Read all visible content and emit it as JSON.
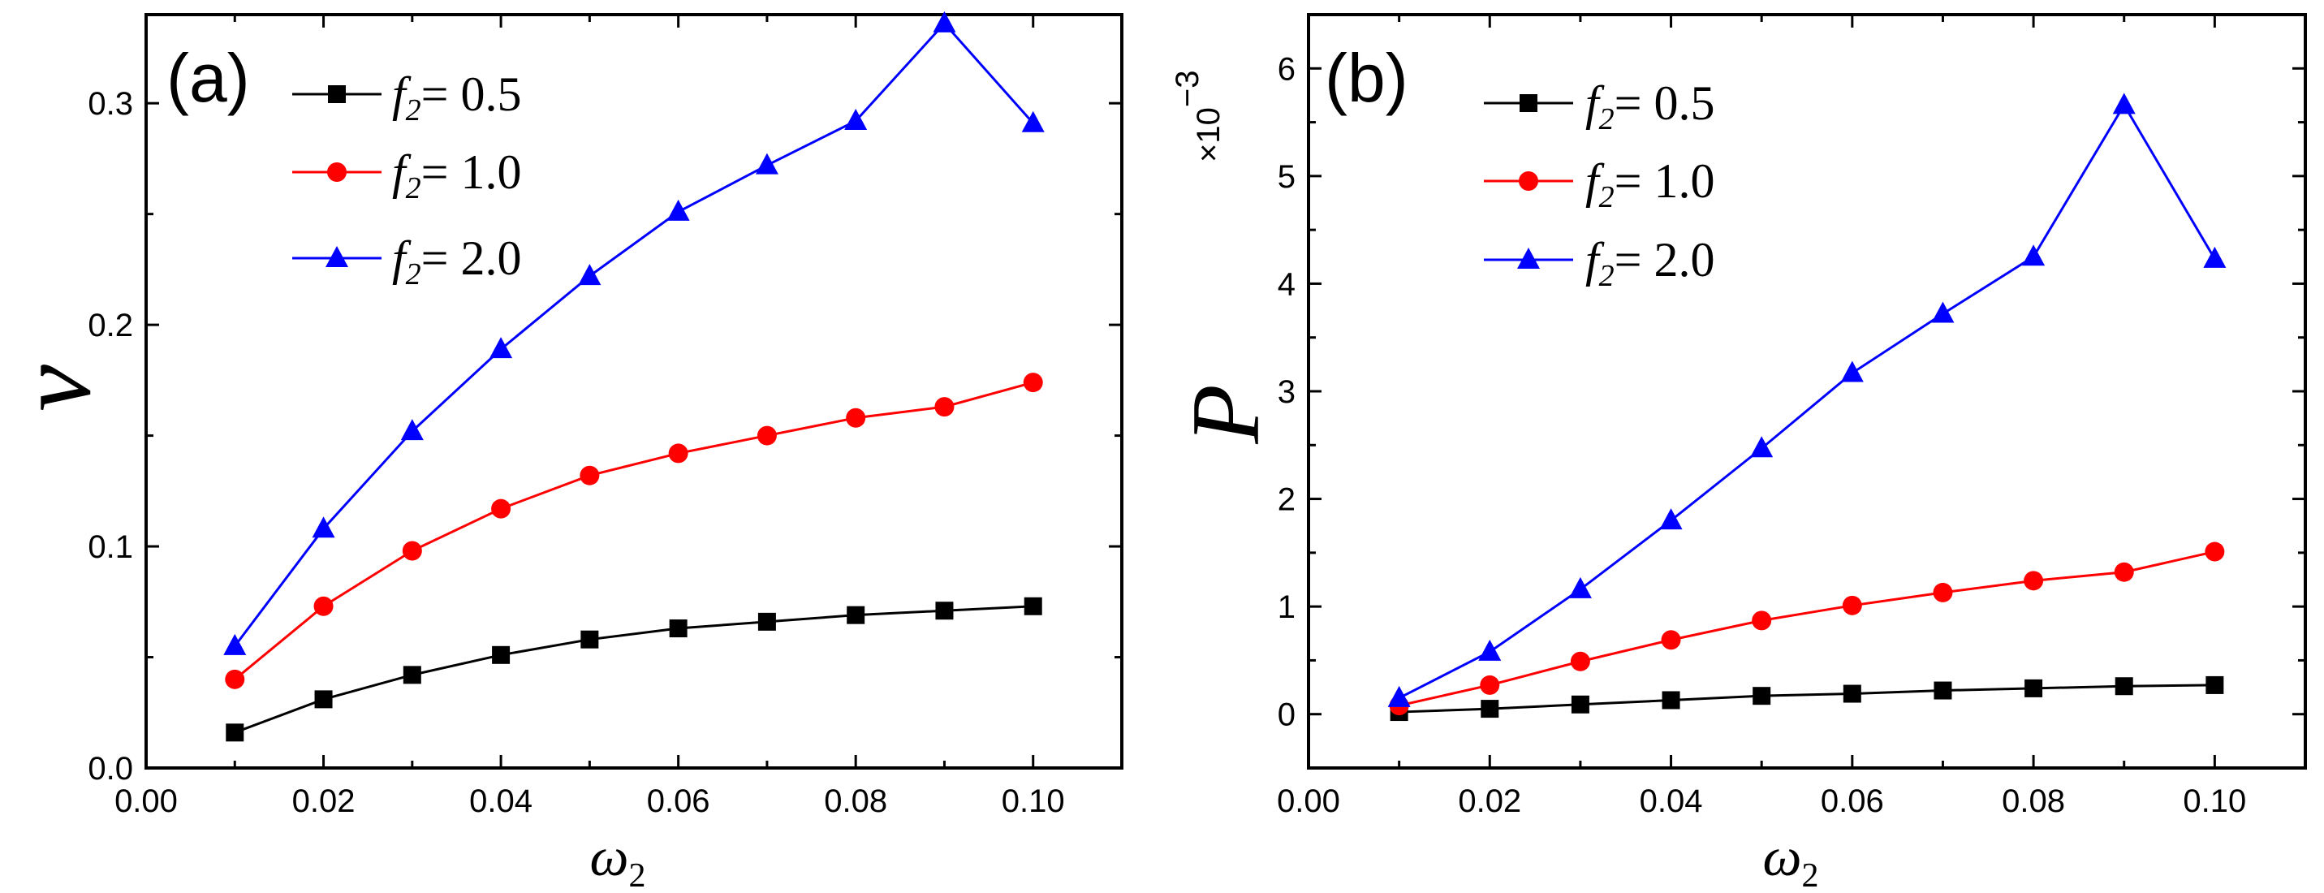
{
  "chart_data": [
    {
      "type": "line",
      "panel_label": "(a)",
      "xlabel": "ω",
      "xlabel_sub": "2",
      "ylabel": "v",
      "xlim": [
        0.0,
        0.11
      ],
      "ylim": [
        0.0,
        0.34
      ],
      "xticks": [
        "0.00",
        "0.02",
        "0.04",
        "0.06",
        "0.08",
        "0.10"
      ],
      "yticks": [
        "0.0",
        "0.1",
        "0.2",
        "0.3"
      ],
      "grid": false,
      "legend_position": "top-left",
      "x": [
        0.01,
        0.02,
        0.03,
        0.04,
        0.05,
        0.06,
        0.07,
        0.08,
        0.09,
        0.1
      ],
      "series": [
        {
          "var": "f",
          "sub": "2",
          "rest": "= 0.5",
          "marker": "square",
          "color": "#000000",
          "values": [
            0.016,
            0.031,
            0.042,
            0.051,
            0.058,
            0.063,
            0.066,
            0.069,
            0.071,
            0.073
          ]
        },
        {
          "var": "f",
          "sub": "2",
          "rest": "= 1.0",
          "marker": "circle",
          "color": "#ff0000",
          "values": [
            0.04,
            0.073,
            0.098,
            0.117,
            0.132,
            0.142,
            0.15,
            0.158,
            0.163,
            0.174
          ]
        },
        {
          "var": "f",
          "sub": "2",
          "rest": "= 2.0",
          "marker": "triangle",
          "color": "#0000ff",
          "values": [
            0.055,
            0.108,
            0.152,
            0.189,
            0.222,
            0.251,
            0.272,
            0.292,
            0.336,
            0.291
          ]
        }
      ]
    },
    {
      "type": "line",
      "panel_label": "(b)",
      "xlabel": "ω",
      "xlabel_sub": "2",
      "ylabel": "P",
      "scale_factor": "×10",
      "scale_exp": "−3",
      "xlim": [
        0.0,
        0.11
      ],
      "ylim": [
        -0.5,
        6.5
      ],
      "xticks": [
        "0.00",
        "0.02",
        "0.04",
        "0.06",
        "0.08",
        "0.10"
      ],
      "yticks": [
        "0",
        "1",
        "2",
        "3",
        "4",
        "5",
        "6"
      ],
      "grid": false,
      "legend_position": "top-left",
      "x": [
        0.01,
        0.02,
        0.03,
        0.04,
        0.05,
        0.06,
        0.07,
        0.08,
        0.09,
        0.1
      ],
      "series": [
        {
          "var": "f",
          "sub": "2",
          "rest": "= 0.5",
          "marker": "square",
          "color": "#000000",
          "values": [
            0.02,
            0.05,
            0.09,
            0.13,
            0.17,
            0.19,
            0.22,
            0.24,
            0.26,
            0.27
          ]
        },
        {
          "var": "f",
          "sub": "2",
          "rest": "= 1.0",
          "marker": "circle",
          "color": "#ff0000",
          "values": [
            0.08,
            0.27,
            0.49,
            0.69,
            0.87,
            1.01,
            1.13,
            1.24,
            1.32,
            1.51
          ]
        },
        {
          "var": "f",
          "sub": "2",
          "rest": "= 2.0",
          "marker": "triangle",
          "color": "#0000ff",
          "values": [
            0.15,
            0.58,
            1.16,
            1.8,
            2.47,
            3.17,
            3.72,
            4.25,
            5.66,
            4.23
          ]
        }
      ]
    }
  ]
}
